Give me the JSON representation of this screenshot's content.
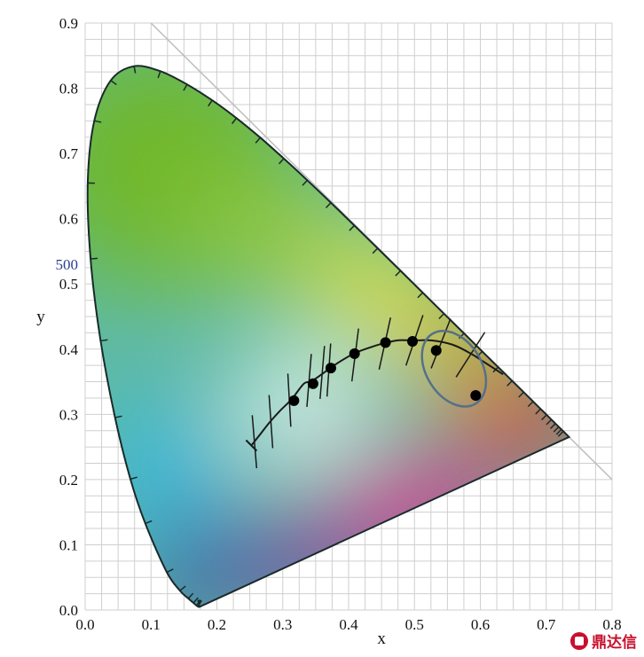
{
  "chart_data": {
    "type": "scatter",
    "title": "",
    "xlabel": "x",
    "ylabel": "y",
    "xlim": [
      0.0,
      0.8
    ],
    "ylim": [
      0.0,
      0.9
    ],
    "grid": true,
    "x_ticks": [
      "0.0",
      "0.1",
      "0.2",
      "0.3",
      "0.4",
      "0.5",
      "0.6",
      "0.7",
      "0.8"
    ],
    "y_ticks": [
      "0.0",
      "0.1",
      "0.2",
      "0.3",
      "0.4",
      "0.5",
      "0.6",
      "0.7",
      "0.8",
      "0.9"
    ],
    "wavelength_label": "500",
    "wavelength_label_y": 0.53,
    "spectral_locus": [
      [
        0.1741,
        0.005
      ],
      [
        0.1738,
        0.0049
      ],
      [
        0.1733,
        0.0048
      ],
      [
        0.1726,
        0.0048
      ],
      [
        0.1714,
        0.0051
      ],
      [
        0.1689,
        0.0069
      ],
      [
        0.1644,
        0.0109
      ],
      [
        0.1566,
        0.0177
      ],
      [
        0.144,
        0.0297
      ],
      [
        0.1241,
        0.0578
      ],
      [
        0.0913,
        0.1327
      ],
      [
        0.0687,
        0.2007
      ],
      [
        0.0454,
        0.295
      ],
      [
        0.0235,
        0.4127
      ],
      [
        0.0082,
        0.5384
      ],
      [
        0.0039,
        0.6548
      ],
      [
        0.0139,
        0.7502
      ],
      [
        0.0389,
        0.812
      ],
      [
        0.0743,
        0.8338
      ],
      [
        0.1142,
        0.8262
      ],
      [
        0.1547,
        0.8059
      ],
      [
        0.1929,
        0.7816
      ],
      [
        0.2296,
        0.7543
      ],
      [
        0.2658,
        0.7243
      ],
      [
        0.3016,
        0.6923
      ],
      [
        0.3373,
        0.6589
      ],
      [
        0.3731,
        0.6245
      ],
      [
        0.4087,
        0.5896
      ],
      [
        0.4441,
        0.5547
      ],
      [
        0.4788,
        0.5202
      ],
      [
        0.5125,
        0.4866
      ],
      [
        0.5448,
        0.4544
      ],
      [
        0.5752,
        0.4242
      ],
      [
        0.6029,
        0.3965
      ],
      [
        0.627,
        0.3725
      ],
      [
        0.6482,
        0.3514
      ],
      [
        0.6658,
        0.334
      ],
      [
        0.6801,
        0.3197
      ],
      [
        0.6915,
        0.3083
      ],
      [
        0.7006,
        0.2993
      ],
      [
        0.7079,
        0.292
      ],
      [
        0.714,
        0.2859
      ],
      [
        0.719,
        0.2809
      ],
      [
        0.723,
        0.277
      ],
      [
        0.726,
        0.274
      ],
      [
        0.7347,
        0.2653
      ]
    ],
    "planckian_locus": [
      [
        0.2524,
        0.2522
      ],
      [
        0.2637,
        0.2668
      ],
      [
        0.2806,
        0.2883
      ],
      [
        0.2952,
        0.3048
      ],
      [
        0.3138,
        0.3236
      ],
      [
        0.3324,
        0.3474
      ],
      [
        0.3451,
        0.3516
      ],
      [
        0.3804,
        0.3767
      ],
      [
        0.4089,
        0.3936
      ],
      [
        0.4369,
        0.4041
      ],
      [
        0.4578,
        0.4101
      ],
      [
        0.4762,
        0.4137
      ],
      [
        0.4973,
        0.4133
      ],
      [
        0.5267,
        0.4133
      ],
      [
        0.5586,
        0.4065
      ],
      [
        0.5857,
        0.3931
      ],
      [
        0.6102,
        0.3772
      ],
      [
        0.6345,
        0.3614
      ]
    ],
    "points": [
      {
        "x": 0.317,
        "y": 0.321
      },
      {
        "x": 0.346,
        "y": 0.347
      },
      {
        "x": 0.373,
        "y": 0.371
      },
      {
        "x": 0.409,
        "y": 0.393
      },
      {
        "x": 0.456,
        "y": 0.41
      },
      {
        "x": 0.497,
        "y": 0.412
      },
      {
        "x": 0.533,
        "y": 0.398
      },
      {
        "x": 0.593,
        "y": 0.329
      }
    ],
    "ellipse": {
      "cx": 0.56,
      "cy": 0.37,
      "rx": 0.042,
      "ry": 0.063,
      "rotation_deg": -32
    },
    "isotherms_x": [
      0.257,
      0.282,
      0.31,
      0.34,
      0.36,
      0.37,
      0.41,
      0.455,
      0.5,
      0.54,
      0.585
    ],
    "colors": {
      "green": "#6fb82c",
      "yellow": "#f8df22",
      "orange": "#f39a1f",
      "red": "#e5252a",
      "magenta": "#e52b8c",
      "purple": "#7a3aa0",
      "blue": "#2d4ea6",
      "cyan": "#35b8e8",
      "teal": "#5fbaa4",
      "white": "#ffffff",
      "ellipse": "#55708a",
      "grid": "#cfcfcf"
    }
  },
  "watermark": {
    "text": "鼎达信"
  }
}
